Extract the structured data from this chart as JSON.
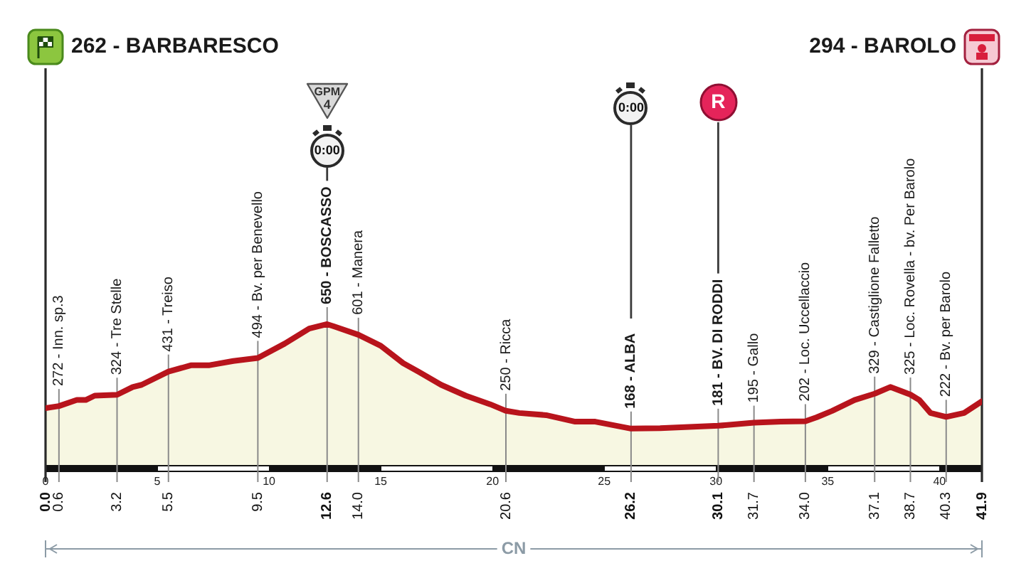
{
  "chart_data": {
    "type": "area",
    "color": "#b8141c",
    "grid": "x",
    "x": [
      0,
      0.6,
      1.4,
      1.8,
      2.2,
      3.2,
      3.9,
      4.3,
      5.5,
      6.5,
      7.3,
      8.4,
      9.5,
      10.7,
      11.8,
      12.6,
      12.9,
      14,
      15,
      16,
      16.7,
      17.7,
      18.8,
      19.9,
      20.6,
      21.2,
      22.4,
      23.7,
      24.6,
      26.2,
      27.5,
      30.1,
      31.7,
      32.9,
      34,
      34.5,
      35.2,
      36.2,
      37.1,
      37.8,
      38.7,
      39.1,
      39.6,
      40.3,
      41.1,
      41.9
    ],
    "values": [
      262,
      272,
      300,
      300,
      320,
      324,
      360,
      370,
      431,
      460,
      460,
      480,
      494,
      560,
      630,
      650,
      640,
      601,
      550,
      470,
      430,
      370,
      320,
      280,
      250,
      240,
      230,
      200,
      200,
      168,
      170,
      181,
      195,
      200,
      202,
      220,
      250,
      300,
      329,
      360,
      325,
      300,
      240,
      222,
      240,
      294
    ],
    "value_labels": [
      null,
      "272 - Inn. sp.3",
      null,
      null,
      null,
      "324 - Tre Stelle",
      null,
      null,
      "431 - Treiso",
      null,
      null,
      null,
      "494 - Bv. per Benevello",
      null,
      null,
      "650 - BOSCASSO",
      null,
      "601 - Manera",
      null,
      null,
      null,
      null,
      null,
      null,
      "250 - Ricca",
      null,
      null,
      null,
      null,
      "168 - ALBA",
      null,
      "181 - BV. DI RODDI",
      "195 - Gallo",
      null,
      "202 - Loc. Uccellaccio",
      null,
      null,
      null,
      "329 - Castiglione Falletto",
      null,
      "325 - Loc. Rovella - bv. Per Barolo",
      null,
      null,
      "222 - Bv. per Barolo",
      null,
      null
    ],
    "xlim": [
      0,
      41.9
    ],
    "xticks": [
      0,
      5,
      10,
      15,
      20,
      25,
      30,
      35,
      40
    ],
    "x2lim": [
      0,
      41.9
    ],
    "x2ticks": [
      {
        "value": 0,
        "label": "0.0"
      },
      0.6,
      3.2,
      5.5,
      9.5,
      12.6,
      {
        "value": 14,
        "label": "14.0"
      },
      20.6,
      26.2,
      30.1,
      31.7,
      {
        "value": 34,
        "label": "34.0"
      },
      37.1,
      38.7,
      40.3,
      41.9
    ],
    "ref_lines": [
      {
        "axis": "x",
        "value": 0,
        "label": "262 - BARBARESCO"
      },
      {
        "axis": "x",
        "value": 41.9,
        "label": "294 - BAROLO"
      }
    ],
    "annotations": [
      "GPM 4",
      "0:00",
      "0:00",
      "R",
      "CN"
    ]
  }
}
